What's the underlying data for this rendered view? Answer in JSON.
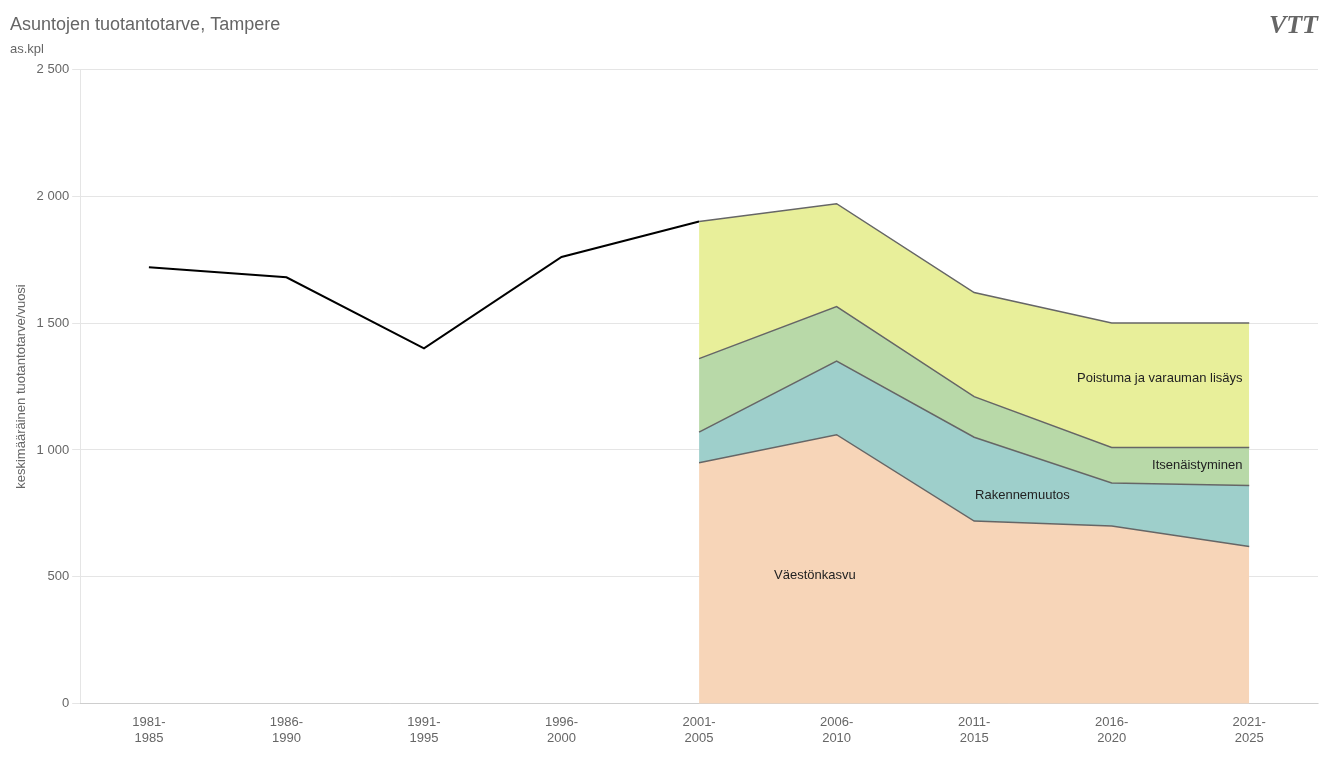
{
  "chart_data": {
    "type": "area",
    "title": "Asuntojen tuotantotarve, Tampere",
    "subtitle": "as.kpl",
    "ylabel": "keskimääräinen tuotantotarve/vuosi",
    "categories": [
      "1981-\n1985",
      "1986-\n1990",
      "1991-\n1995",
      "1996-\n2000",
      "2001-\n2005",
      "2006-\n2010",
      "2011-\n2015",
      "2016-\n2020",
      "2021-\n2025"
    ],
    "series": [
      {
        "name": "Väestönkasvu",
        "color": "#f7d5b8",
        "values": [
          null,
          null,
          null,
          null,
          950,
          1060,
          720,
          700,
          620
        ]
      },
      {
        "name": "Rakennemuutos",
        "color": "#9ecfcb",
        "values": [
          null,
          null,
          null,
          null,
          1070,
          1350,
          1050,
          870,
          860
        ]
      },
      {
        "name": "Itsenäistyminen",
        "color": "#b8d9a8",
        "values": [
          null,
          null,
          null,
          null,
          1360,
          1565,
          1210,
          1010,
          1010
        ]
      },
      {
        "name": "Poistuma ja varauman lisäys",
        "color": "#e8ef9a",
        "values": [
          null,
          null,
          null,
          null,
          1900,
          1970,
          1620,
          1500,
          1500
        ]
      },
      {
        "type": "line",
        "color": "#000000",
        "values": [
          1720,
          1680,
          1400,
          1760,
          1900,
          null,
          null,
          null,
          null
        ]
      }
    ],
    "ylim": [
      0,
      2500
    ],
    "yticks": [
      0,
      500,
      {
        "value": 1000,
        "label": "1 000"
      },
      {
        "value": 1500,
        "label": "1 500"
      },
      {
        "value": 2000,
        "label": "2 000"
      },
      {
        "value": 2500,
        "label": "2 500"
      }
    ],
    "grid": true,
    "annotations": [
      "VTT"
    ]
  }
}
